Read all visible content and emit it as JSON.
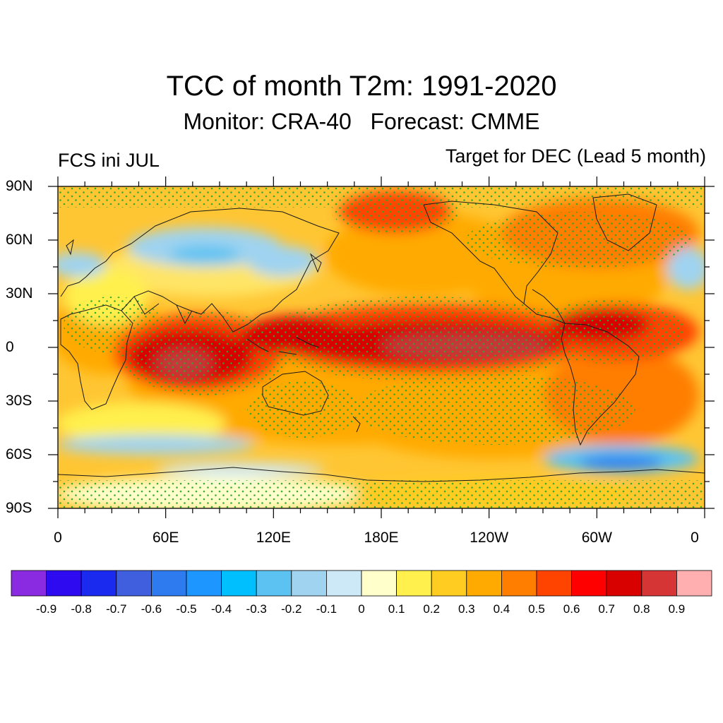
{
  "title": "TCC of month T2m: 1991-2020",
  "subtitle": "Monitor: CRA-40   Forecast: CMME",
  "left_label": "FCS ini JUL",
  "right_label": "Target for DEC (Lead 5 month)",
  "lat_labels": [
    "90N",
    "60N",
    "30N",
    "0",
    "30S",
    "60S",
    "90S"
  ],
  "lon_labels": [
    "0",
    "60E",
    "120E",
    "180E",
    "120W",
    "60W",
    "0"
  ],
  "colorbar": {
    "colors": [
      "#8a2be2",
      "#2d0af0",
      "#1a2aee",
      "#3f5fde",
      "#2e7bef",
      "#1e96ff",
      "#00bfff",
      "#5cc2f2",
      "#9fd3f0",
      "#cde8f7",
      "#ffffcc",
      "#fff04e",
      "#ffcc22",
      "#ffaa00",
      "#ff7e00",
      "#ff4400",
      "#ff0000",
      "#d90000",
      "#d53535",
      "#ffafb0"
    ],
    "labels": [
      "-0.9",
      "-0.8",
      "-0.7",
      "-0.6",
      "-0.5",
      "-0.4",
      "-0.3",
      "-0.2",
      "-0.1",
      "0",
      "0.1",
      "0.2",
      "0.3",
      "0.4",
      "0.5",
      "0.6",
      "0.7",
      "0.8",
      "0.9"
    ]
  }
}
